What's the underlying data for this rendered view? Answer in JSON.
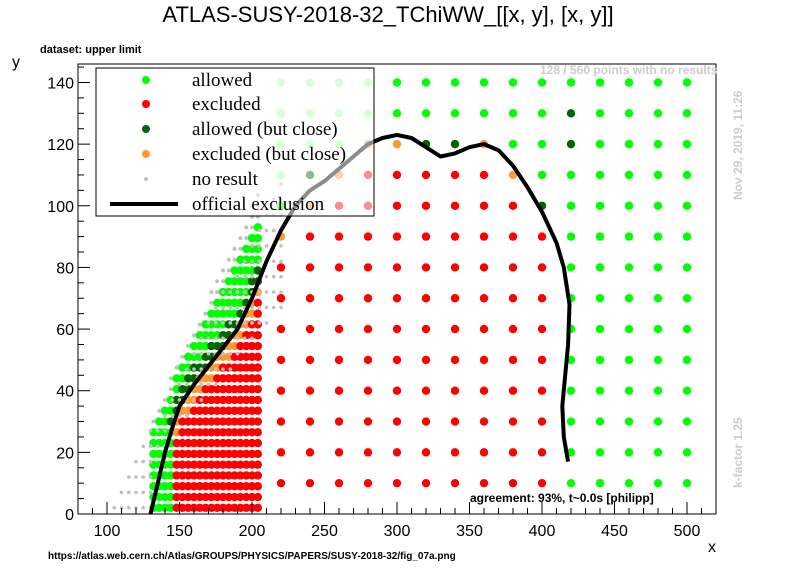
{
  "header": {
    "title": "ATLAS-SUSY-2018-32_TChiWW_[[x, y], [x, y]]",
    "dataset": "dataset: upper limit"
  },
  "annotations": {
    "no_results": "128 / 560 points with no results",
    "timestamp": "Nov 29, 2019, 11:26",
    "kfactor": "k-factor 1.25",
    "agreement": "agreement: 93%, t~0.0s [philipp]",
    "source_url": "https://atlas.web.cern.ch/Atlas/GROUPS/PHYSICS/PAPERS/SUSY-2018-32/fig_07a.png"
  },
  "legend": {
    "allowed": "allowed",
    "excluded": "excluded",
    "allowed_close": "allowed (but close)",
    "excluded_close": "excluded (but close)",
    "no_result": "no result",
    "official": "official exclusion"
  },
  "colors": {
    "allowed": "#00ff00",
    "excluded": "#ff0000",
    "allowed_close": "#006600",
    "excluded_close": "#ff9933",
    "no_result": "#c0c0c0",
    "official": "#000000"
  },
  "chart_data": {
    "type": "scatter",
    "xlabel": "x",
    "ylabel": "y",
    "xlim": [
      80,
      520
    ],
    "ylim": [
      0,
      146
    ],
    "xticks": [
      100,
      150,
      200,
      250,
      300,
      350,
      400,
      450,
      500
    ],
    "yticks": [
      0,
      20,
      40,
      60,
      80,
      100,
      120,
      140
    ],
    "grid_points": {
      "x_start": 220,
      "x_end": 500,
      "x_step": 20,
      "y_start": 10,
      "y_end": 140,
      "y_step": 10
    },
    "official_exclusion": {
      "x": [
        130,
        135,
        140,
        145,
        150,
        160,
        170,
        180,
        190,
        200,
        210,
        220,
        230,
        240,
        250,
        260,
        270,
        280,
        290,
        300,
        310,
        320,
        330,
        340,
        350,
        360,
        370,
        380,
        390,
        400,
        405,
        410,
        415,
        419,
        418,
        416,
        414,
        415,
        418
      ],
      "y": [
        0,
        10,
        20,
        28,
        35,
        42,
        48,
        54,
        60,
        70,
        82,
        92,
        100,
        105,
        108,
        112,
        116,
        120,
        122,
        123,
        122,
        119,
        116,
        117,
        119,
        120,
        118,
        113,
        106,
        98,
        93,
        88,
        80,
        68,
        55,
        45,
        35,
        25,
        17
      ]
    }
  }
}
